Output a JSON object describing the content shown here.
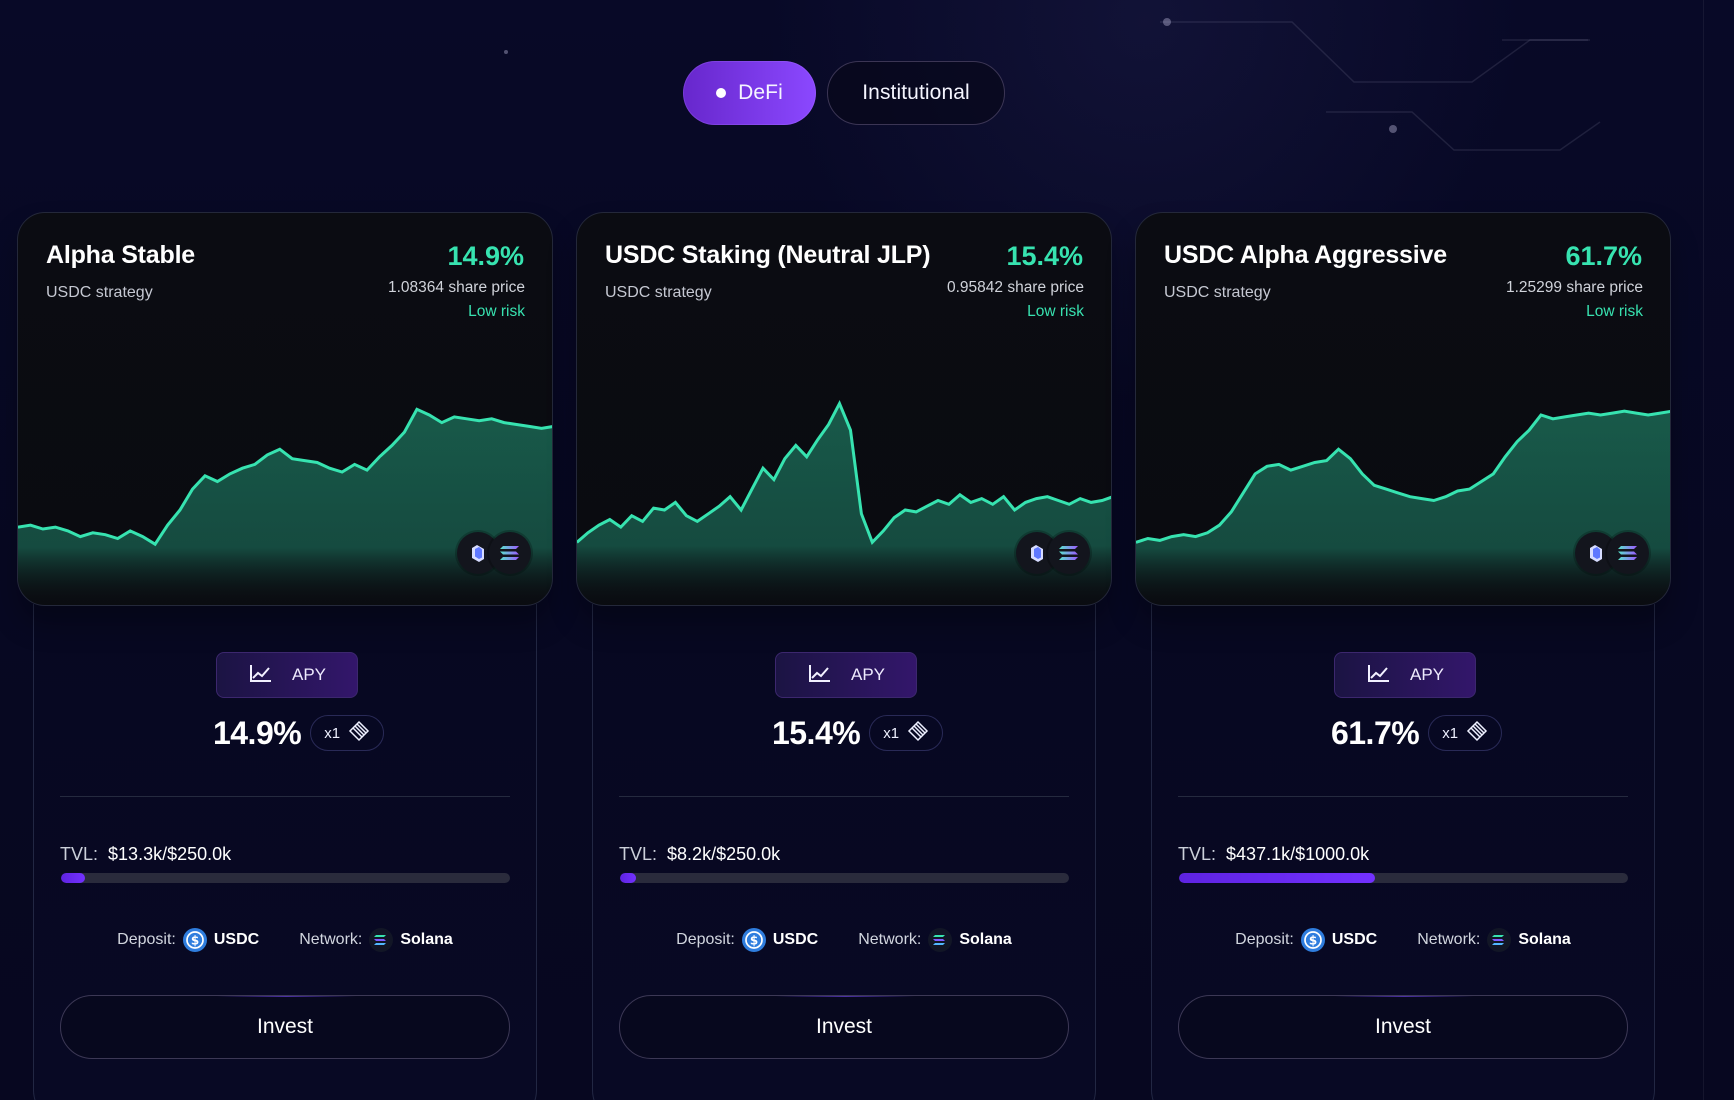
{
  "tabs": [
    {
      "label": "DeFi",
      "active": true
    },
    {
      "label": "Institutional",
      "active": false
    }
  ],
  "colors": {
    "accent_green": "#37E3B0",
    "accent_purple": "#7331FF",
    "card_bg": "#0B0C12",
    "page_bg": "#070823"
  },
  "cards": [
    {
      "title": "Alpha Stable",
      "subtitle": "USDC strategy",
      "apy": "14.9%",
      "share_price": "1.08364 share price",
      "risk": "Low risk",
      "apy_label": "APY",
      "apy_value": "14.9%",
      "multiplier": "x1",
      "tvl_label": "TVL:",
      "tvl_value": "$13.3k/$250.0k",
      "tvl_progress": 0.053,
      "deposit_label": "Deposit:",
      "deposit_token": "USDC",
      "network_label": "Network:",
      "network_name": "Solana",
      "invest_label": "Invest",
      "icons": [
        "protocol-logo-icon",
        "solana-icon",
        "usdc-icon",
        "chart-icon",
        "layers-icon"
      ]
    },
    {
      "title": "USDC Staking (Neutral JLP)",
      "subtitle": "USDC strategy",
      "apy": "15.4%",
      "share_price": "0.95842 share price",
      "risk": "Low risk",
      "apy_label": "APY",
      "apy_value": "15.4%",
      "multiplier": "x1",
      "tvl_label": "TVL:",
      "tvl_value": "$8.2k/$250.0k",
      "tvl_progress": 0.033,
      "deposit_label": "Deposit:",
      "deposit_token": "USDC",
      "network_label": "Network:",
      "network_name": "Solana",
      "invest_label": "Invest",
      "icons": [
        "protocol-logo-icon",
        "solana-icon",
        "usdc-icon",
        "chart-icon",
        "layers-icon"
      ]
    },
    {
      "title": "USDC Alpha Aggressive",
      "subtitle": "USDC strategy",
      "apy": "61.7%",
      "share_price": "1.25299 share price",
      "risk": "Low risk",
      "apy_label": "APY",
      "apy_value": "61.7%",
      "multiplier": "x1",
      "tvl_label": "TVL:",
      "tvl_value": "$437.1k/$1000.0k",
      "tvl_progress": 0.437,
      "deposit_label": "Deposit:",
      "deposit_token": "USDC",
      "network_label": "Network:",
      "network_name": "Solana",
      "invest_label": "Invest",
      "icons": [
        "protocol-logo-icon",
        "solana-icon",
        "usdc-icon",
        "chart-icon",
        "layers-icon"
      ]
    }
  ],
  "chart_data": [
    {
      "type": "area",
      "title": "",
      "xlabel": "",
      "ylabel": "",
      "values": [
        0.11,
        0.12,
        0.1,
        0.11,
        0.09,
        0.06,
        0.08,
        0.07,
        0.05,
        0.09,
        0.06,
        0.02,
        0.12,
        0.2,
        0.31,
        0.38,
        0.35,
        0.39,
        0.42,
        0.44,
        0.49,
        0.52,
        0.47,
        0.46,
        0.45,
        0.42,
        0.4,
        0.44,
        0.41,
        0.48,
        0.54,
        0.61,
        0.73,
        0.7,
        0.66,
        0.69,
        0.68,
        0.67,
        0.68,
        0.66,
        0.65,
        0.64,
        0.63,
        0.64
      ],
      "ylim": [
        0,
        1
      ],
      "grid": false,
      "legend": "none"
    },
    {
      "type": "area",
      "title": "",
      "xlabel": "",
      "ylabel": "",
      "values": [
        0.03,
        0.08,
        0.12,
        0.15,
        0.11,
        0.17,
        0.14,
        0.21,
        0.2,
        0.24,
        0.17,
        0.14,
        0.18,
        0.22,
        0.27,
        0.2,
        0.31,
        0.42,
        0.36,
        0.47,
        0.54,
        0.48,
        0.57,
        0.65,
        0.76,
        0.62,
        0.18,
        0.03,
        0.09,
        0.16,
        0.2,
        0.19,
        0.22,
        0.25,
        0.23,
        0.28,
        0.24,
        0.26,
        0.23,
        0.27,
        0.2,
        0.24,
        0.26,
        0.27,
        0.25,
        0.23,
        0.26,
        0.24,
        0.25,
        0.27
      ],
      "ylim": [
        0,
        1
      ],
      "grid": false,
      "legend": "none"
    },
    {
      "type": "area",
      "title": "",
      "xlabel": "",
      "ylabel": "",
      "values": [
        0.03,
        0.05,
        0.04,
        0.06,
        0.07,
        0.06,
        0.08,
        0.12,
        0.19,
        0.29,
        0.39,
        0.43,
        0.44,
        0.41,
        0.43,
        0.45,
        0.46,
        0.52,
        0.47,
        0.39,
        0.33,
        0.31,
        0.29,
        0.27,
        0.26,
        0.25,
        0.27,
        0.3,
        0.31,
        0.35,
        0.39,
        0.48,
        0.56,
        0.62,
        0.7,
        0.68,
        0.69,
        0.7,
        0.71,
        0.7,
        0.71,
        0.72,
        0.71,
        0.7,
        0.71,
        0.72
      ],
      "ylim": [
        0,
        1
      ],
      "grid": false,
      "legend": "none"
    }
  ]
}
